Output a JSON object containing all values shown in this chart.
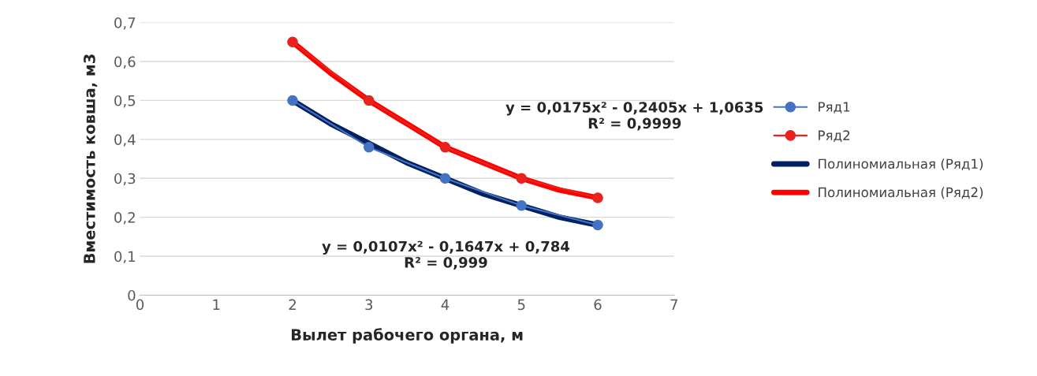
{
  "chart_data": {
    "type": "line",
    "xlabel": "Вылет рабочего органа, м",
    "ylabel": "Вместимость ковша, м3",
    "x": [
      2,
      3,
      4,
      5,
      6
    ],
    "series": [
      {
        "name": "Ряд1",
        "color": "#4472c4",
        "values": [
          0.5,
          0.38,
          0.3,
          0.23,
          0.18
        ],
        "marker": "circle"
      },
      {
        "name": "Ряд2",
        "color": "#e8231e",
        "values": [
          0.65,
          0.5,
          0.38,
          0.3,
          0.25
        ],
        "marker": "circle"
      },
      {
        "name": "Полиномиальная (Ряд1)",
        "color": "#002060",
        "x": [
          2,
          2.5,
          3,
          3.5,
          4,
          4.5,
          5,
          5.5,
          6
        ],
        "values": [
          0.5,
          0.44,
          0.39,
          0.34,
          0.3,
          0.26,
          0.23,
          0.2,
          0.18
        ]
      },
      {
        "name": "Полиномиальная (Ряд2)",
        "color": "#ff0000",
        "x": [
          2,
          2.5,
          3,
          3.5,
          4,
          4.5,
          5,
          5.5,
          6
        ],
        "values": [
          0.65,
          0.57,
          0.5,
          0.44,
          0.38,
          0.34,
          0.3,
          0.27,
          0.25
        ]
      }
    ],
    "xlim": [
      0,
      7
    ],
    "xticks": [
      0,
      1,
      2,
      3,
      4,
      5,
      6,
      7
    ],
    "ylim": [
      0,
      0.7
    ],
    "yticks": [
      {
        "value": 0,
        "label": "0"
      },
      {
        "value": 0.1,
        "label": "0,1"
      },
      {
        "value": 0.2,
        "label": "0,2"
      },
      {
        "value": 0.3,
        "label": "0,3"
      },
      {
        "value": 0.4,
        "label": "0,4"
      },
      {
        "value": 0.5,
        "label": "0,5"
      },
      {
        "value": 0.6,
        "label": "0,6"
      },
      {
        "value": 0.7,
        "label": "0,7"
      }
    ],
    "annotations": [
      "y = 0,0107x² - 0,1647x + 0,784\nR² = 0,999",
      "y = 0,0175x² - 0,2405x + 1,0635\nR² = 0,9999"
    ],
    "grid": "y",
    "legend": "right",
    "line_style": "solid"
  }
}
